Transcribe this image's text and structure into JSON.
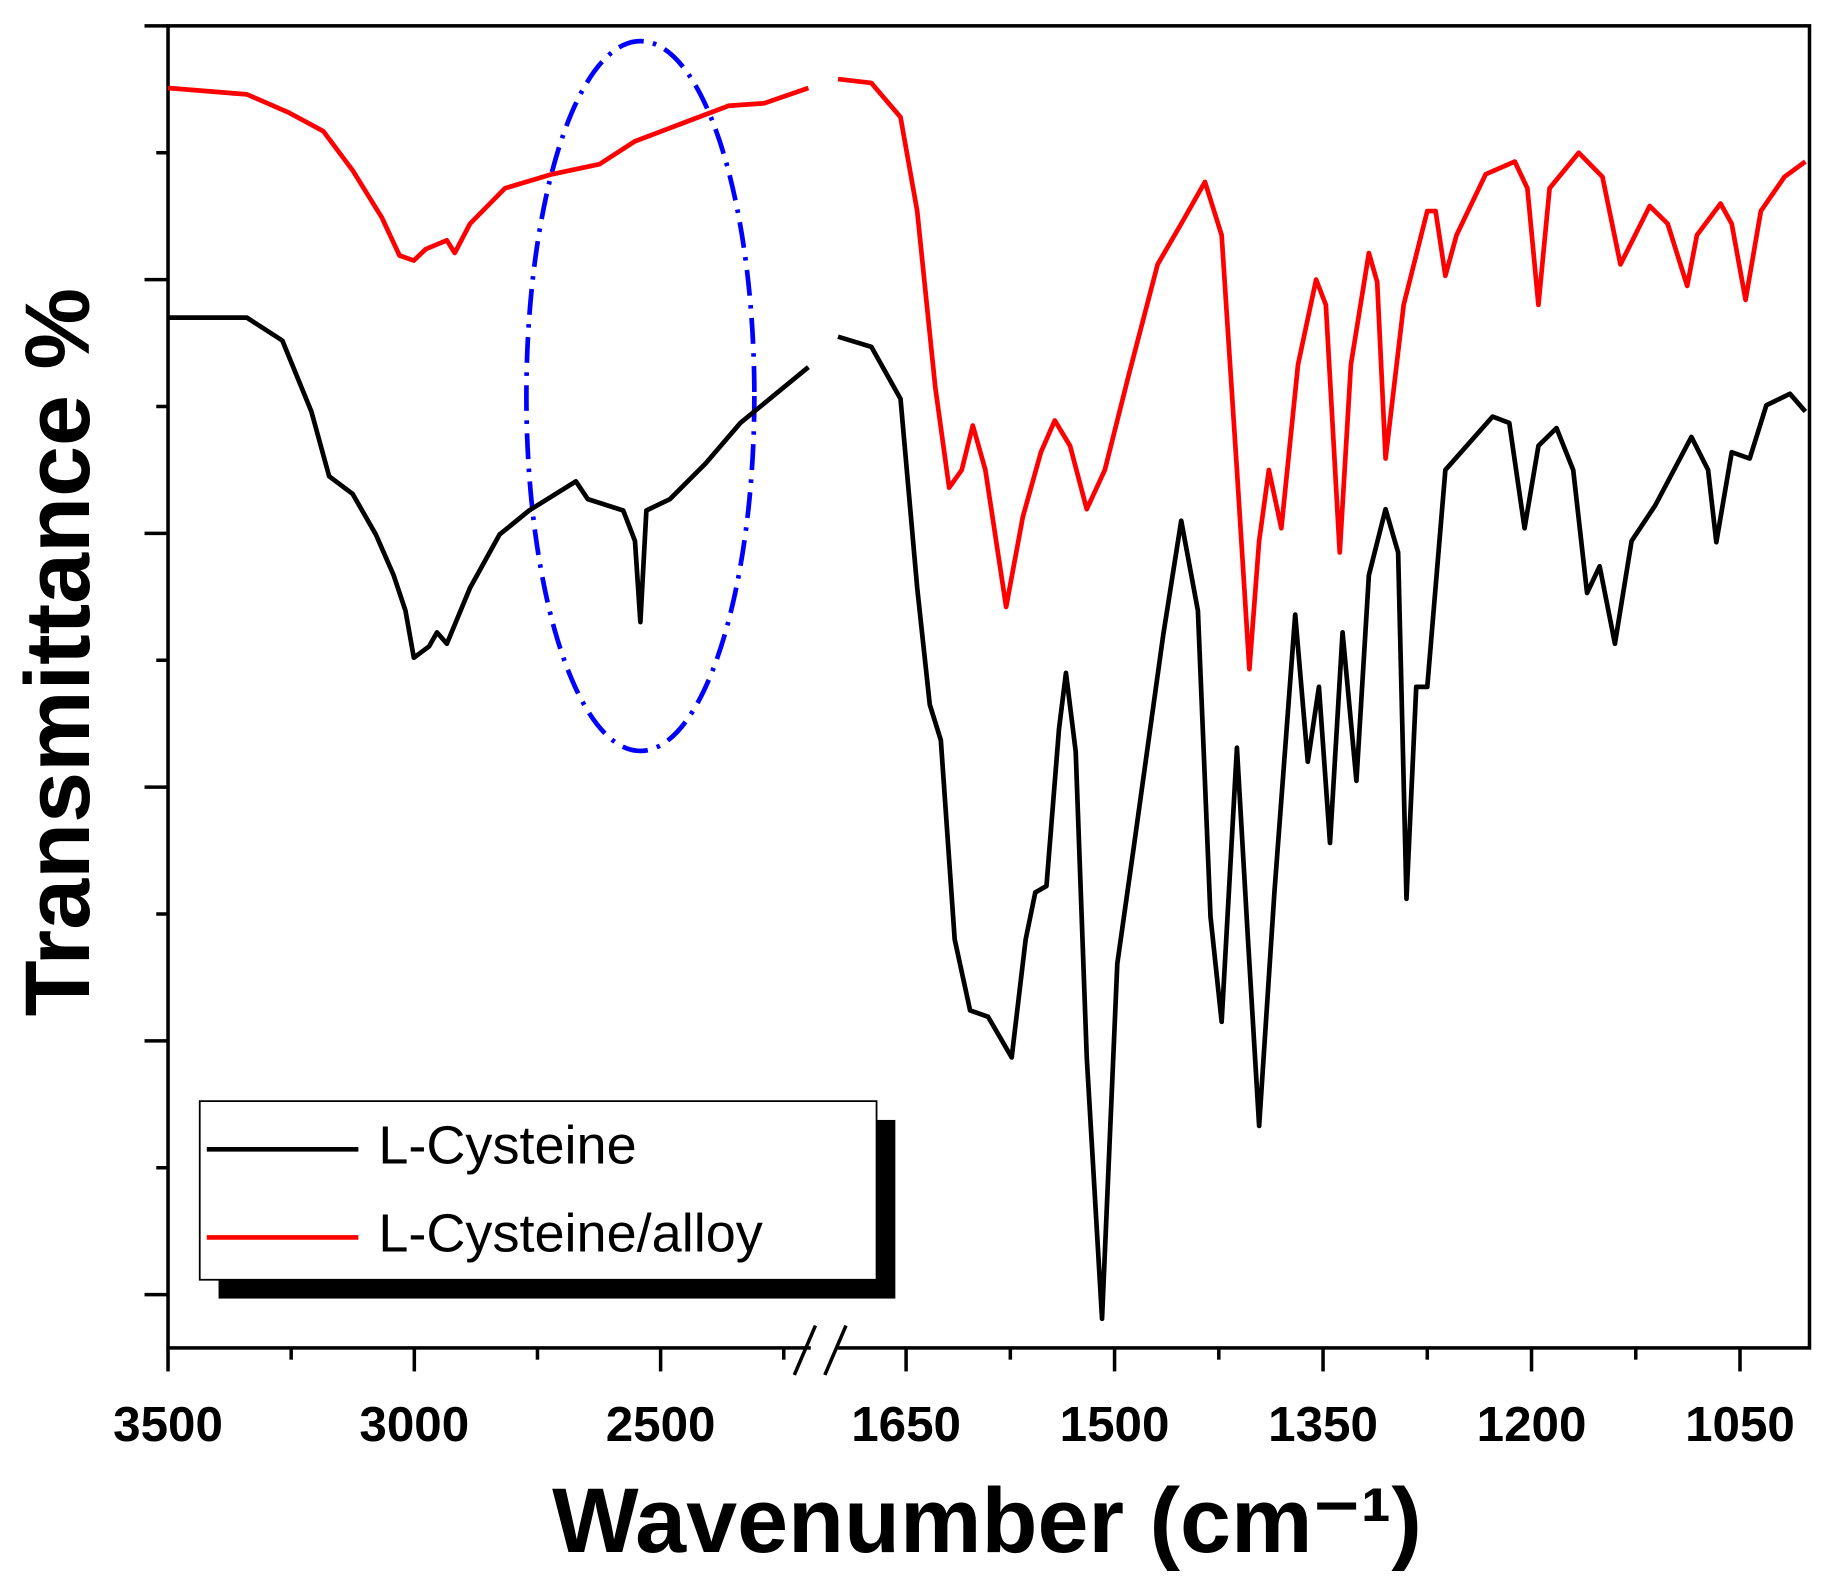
{
  "chart_data": {
    "type": "line",
    "x_label": "Wavenumber (cm⁻¹)",
    "y_label": "Transmittance %",
    "xlim": [
      [
        3500,
        2200
      ],
      [
        1700,
        1000
      ]
    ],
    "xticks": [
      [
        3500,
        3000,
        2500
      ],
      [
        1650,
        1500,
        1350,
        1200,
        1050
      ]
    ],
    "xminorticks": [
      [
        3250,
        2750,
        2250
      ],
      [
        1575,
        1425,
        1275,
        1125
      ]
    ],
    "ylim": [
      -4.2,
      100
    ],
    "yticks": [
      0,
      10,
      20,
      30,
      40,
      50,
      60,
      70,
      80,
      90,
      100
    ],
    "legend": "lower left",
    "series": [
      {
        "name": "L-Cysteine",
        "color": "#000000",
        "x": [
          3500,
          3340,
          3268,
          3209,
          3173,
          3125,
          3078,
          3042,
          3018,
          3001,
          2970,
          2954,
          2934,
          2887,
          2827,
          2767,
          2672,
          2648,
          2576,
          2552,
          2541,
          2529,
          2481,
          2409,
          2338,
          2266,
          2200,
          1699,
          1675,
          1654,
          1642,
          1633,
          1625,
          1615,
          1604,
          1591,
          1574,
          1564,
          1557,
          1549,
          1540,
          1535,
          1528,
          1520,
          1509,
          1498,
          1486,
          1465,
          1452,
          1440,
          1431,
          1423,
          1412,
          1404,
          1396,
          1385,
          1370,
          1361,
          1353,
          1345,
          1336,
          1326,
          1317,
          1305,
          1296,
          1290,
          1283,
          1275,
          1262,
          1228,
          1216,
          1205,
          1195,
          1182,
          1170,
          1160,
          1151,
          1140,
          1128,
          1111,
          1085,
          1073,
          1067,
          1056,
          1043,
          1031,
          1014,
          1003
        ],
        "values": [
          77.0,
          77.0,
          75.2,
          69.6,
          64.5,
          63.1,
          59.9,
          56.7,
          53.9,
          50.2,
          51.1,
          52.2,
          51.3,
          55.7,
          59.9,
          61.8,
          64.1,
          62.7,
          61.8,
          59.4,
          53.0,
          61.8,
          62.7,
          65.5,
          68.7,
          71.0,
          73.1,
          75.5,
          74.7,
          70.6,
          55.7,
          46.5,
          43.7,
          28.0,
          22.4,
          21.9,
          18.7,
          28.0,
          31.7,
          32.2,
          44.6,
          49.0,
          42.8,
          18.7,
          -1.9,
          26.1,
          35.4,
          52.0,
          61.0,
          53.9,
          29.8,
          21.5,
          43.1,
          28.0,
          13.3,
          31.7,
          53.6,
          42.0,
          47.9,
          35.6,
          52.2,
          40.5,
          56.7,
          61.9,
          58.5,
          31.2,
          47.9,
          47.9,
          65.0,
          69.2,
          68.7,
          60.4,
          66.9,
          68.3,
          65.0,
          55.3,
          57.4,
          51.3,
          59.4,
          62.2,
          67.6,
          65.0,
          59.3,
          66.4,
          65.9,
          70.1,
          71.0,
          69.6
        ]
      },
      {
        "name": "L-Cysteine/alloy",
        "color": "#ff0000",
        "x": [
          3500,
          3340,
          3257,
          3185,
          3125,
          3066,
          3030,
          3001,
          2977,
          2934,
          2918,
          2887,
          2816,
          2721,
          2624,
          2552,
          2457,
          2362,
          2290,
          2200,
          1699,
          1675,
          1654,
          1642,
          1629,
          1619,
          1610,
          1602,
          1593,
          1578,
          1566,
          1553,
          1543,
          1532,
          1520,
          1507,
          1490,
          1469,
          1452,
          1435,
          1423,
          1412,
          1403,
          1396,
          1389,
          1380,
          1368,
          1355,
          1348,
          1338,
          1330,
          1317,
          1311,
          1305,
          1292,
          1275,
          1269,
          1262,
          1254,
          1233,
          1212,
          1203,
          1195,
          1187,
          1166,
          1149,
          1136,
          1115,
          1102,
          1088,
          1081,
          1064,
          1056,
          1046,
          1035,
          1018,
          1003
        ],
        "values": [
          95.1,
          94.6,
          93.2,
          91.7,
          88.6,
          84.9,
          81.9,
          81.5,
          82.4,
          83.1,
          82.1,
          84.4,
          87.2,
          88.3,
          89.1,
          90.9,
          92.3,
          93.7,
          93.9,
          95.1,
          95.8,
          95.5,
          92.8,
          85.4,
          71.5,
          63.6,
          65.0,
          68.5,
          65.0,
          54.2,
          61.3,
          66.4,
          68.9,
          66.9,
          61.9,
          65.0,
          72.4,
          81.2,
          84.4,
          87.7,
          83.5,
          65.0,
          49.3,
          59.4,
          65.0,
          60.4,
          73.3,
          80.0,
          78.0,
          58.5,
          73.3,
          82.1,
          79.8,
          65.9,
          78.0,
          85.4,
          85.4,
          80.3,
          83.5,
          88.3,
          89.3,
          87.2,
          78.0,
          87.2,
          90.0,
          88.1,
          81.2,
          85.8,
          84.4,
          79.5,
          83.5,
          86.0,
          84.4,
          78.4,
          85.4,
          88.1,
          89.3
        ]
      }
    ]
  }
}
